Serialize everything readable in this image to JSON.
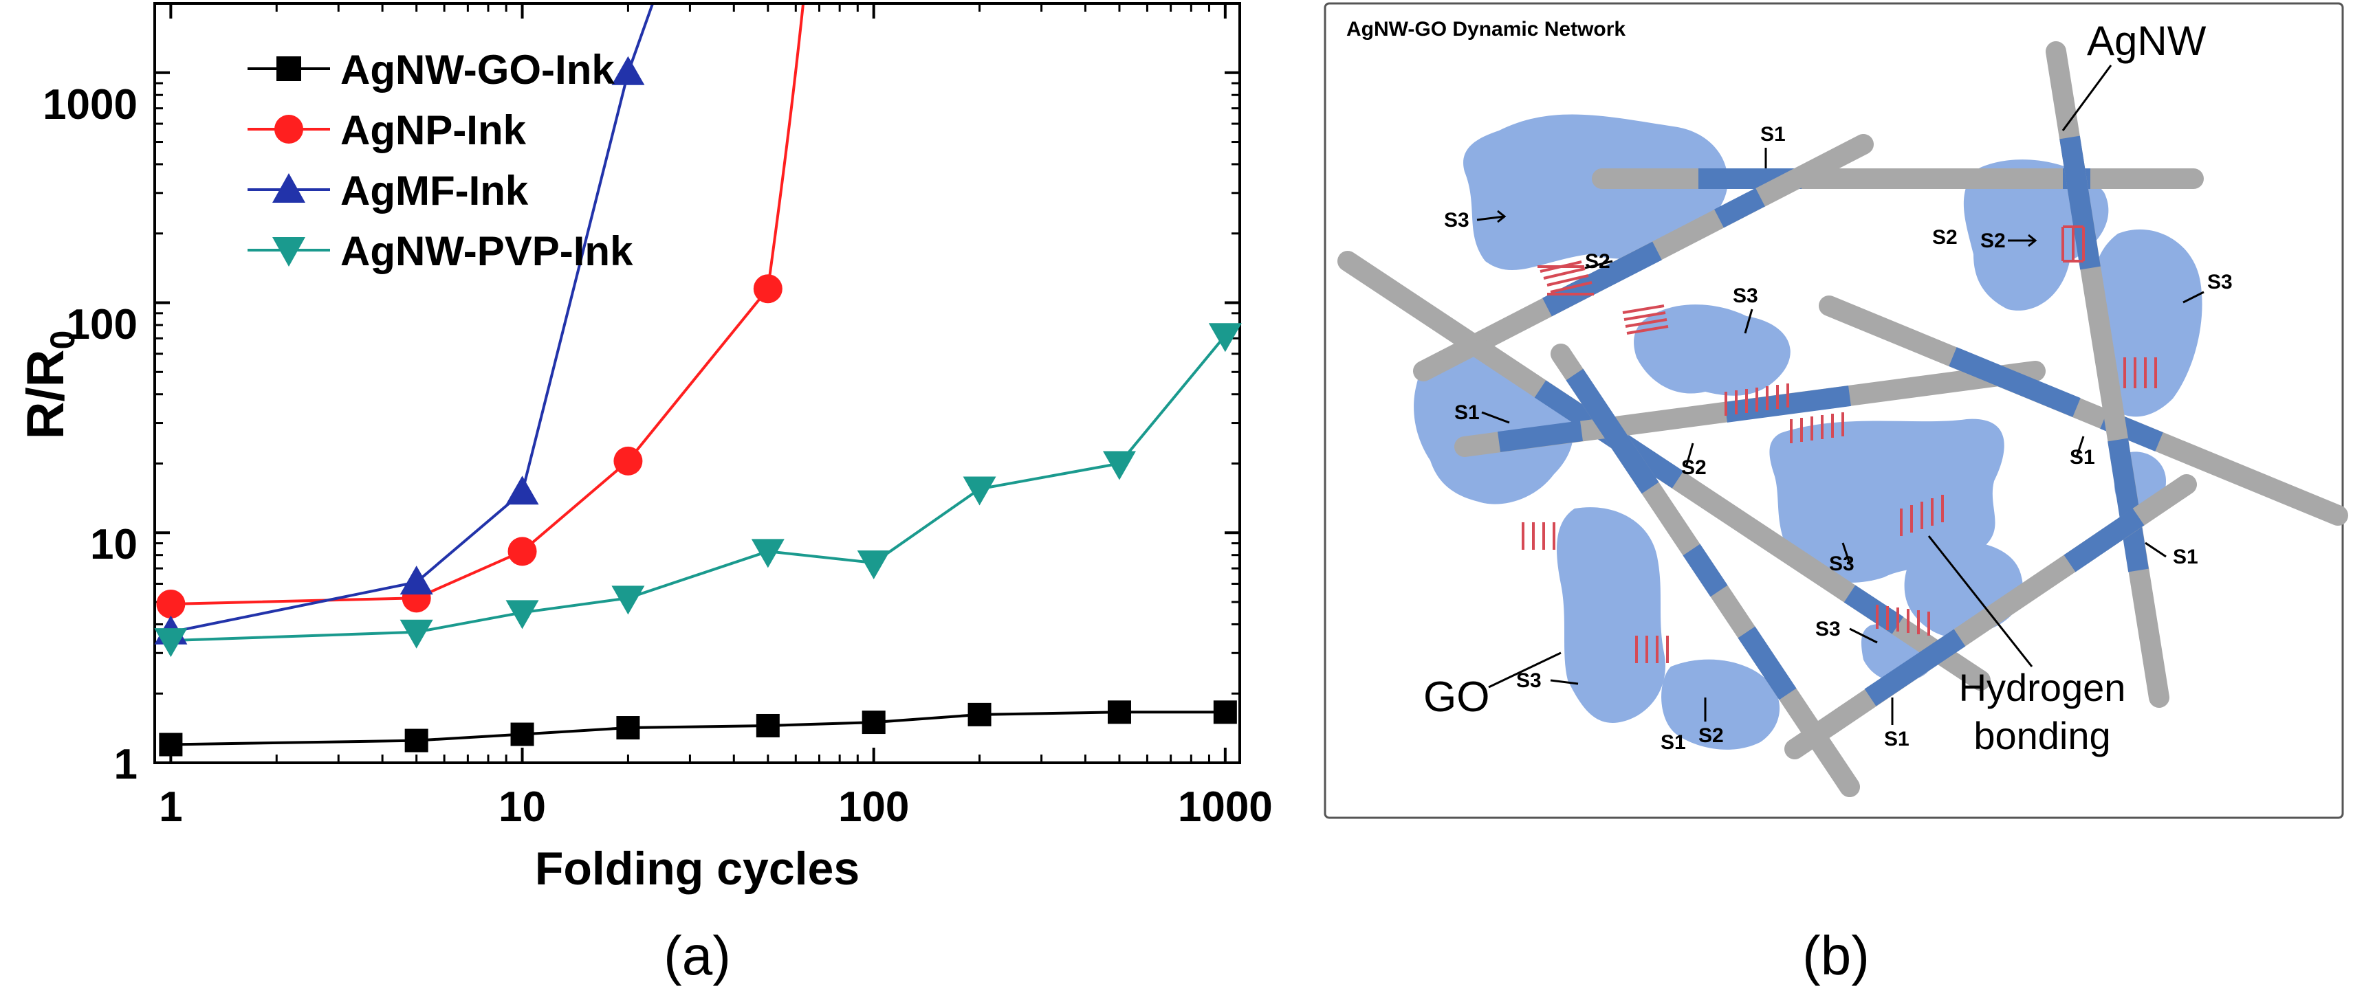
{
  "chart_data": {
    "type": "line",
    "xscale": "log",
    "yscale": "log",
    "xlim": [
      0.9,
      1100
    ],
    "ylim": [
      1,
      2000
    ],
    "xlabel": "Folding cycles",
    "ylabel": "R/R",
    "ylabel_sub": "0",
    "panel_label": "(a)",
    "xticks": [
      1,
      10,
      100,
      1000
    ],
    "xtick_labels": [
      "1",
      "10",
      "100",
      "1000"
    ],
    "yticks": [
      1,
      10,
      100,
      1000
    ],
    "ytick_labels": [
      "1",
      "10",
      "100",
      "1000"
    ],
    "legend_position": "top-left",
    "series": [
      {
        "name": "AgNW-GO-Ink",
        "color": "#000000",
        "marker": "square",
        "x": [
          1,
          5,
          10,
          20,
          50,
          100,
          200,
          500,
          1000
        ],
        "y": [
          1.2,
          1.25,
          1.33,
          1.42,
          1.45,
          1.5,
          1.62,
          1.66,
          1.66
        ]
      },
      {
        "name": "AgNP-Ink",
        "color": "#ff1f1f",
        "marker": "circle",
        "x": [
          1,
          5,
          10,
          20,
          50
        ],
        "y": [
          4.9,
          5.2,
          8.3,
          20.5,
          115
        ],
        "tail": {
          "x": [
            50,
            58,
            63
          ],
          "y": [
            115,
            600,
            2000
          ]
        }
      },
      {
        "name": "AgMF-Ink",
        "color": "#2233aa",
        "marker": "triangle-up",
        "x": [
          1,
          5,
          10,
          20
        ],
        "y": [
          3.7,
          6.1,
          15,
          1000
        ],
        "tail": {
          "x": [
            20,
            23.5
          ],
          "y": [
            1000,
            2000
          ]
        }
      },
      {
        "name": "AgNW-PVP-Ink",
        "color": "#1a9a8e",
        "marker": "triangle-down",
        "x": [
          1,
          5,
          10,
          20,
          50,
          100,
          200,
          500,
          1000
        ],
        "y": [
          3.4,
          3.7,
          4.5,
          5.2,
          8.3,
          7.4,
          15.5,
          20,
          72
        ]
      }
    ]
  },
  "diagram": {
    "title": "AgNW-GO Dynamic Network",
    "labels": {
      "agnw": "AgNW",
      "go": "GO",
      "hydrogen_line1": "Hydrogen",
      "hydrogen_line2": "bonding",
      "panel_label": "(b)"
    },
    "site_labels": [
      "S1",
      "S1",
      "S1",
      "S1",
      "S1",
      "S1",
      "S2",
      "S2",
      "S2",
      "S2",
      "S2",
      "S3",
      "S3",
      "S3",
      "S3",
      "S3",
      "S3"
    ],
    "colors": {
      "nanowire": "#a8a8a8",
      "nanowire_covered": "#4f7bbd",
      "go_flake": "#8eaee3",
      "hbond": "#d64a55"
    }
  }
}
